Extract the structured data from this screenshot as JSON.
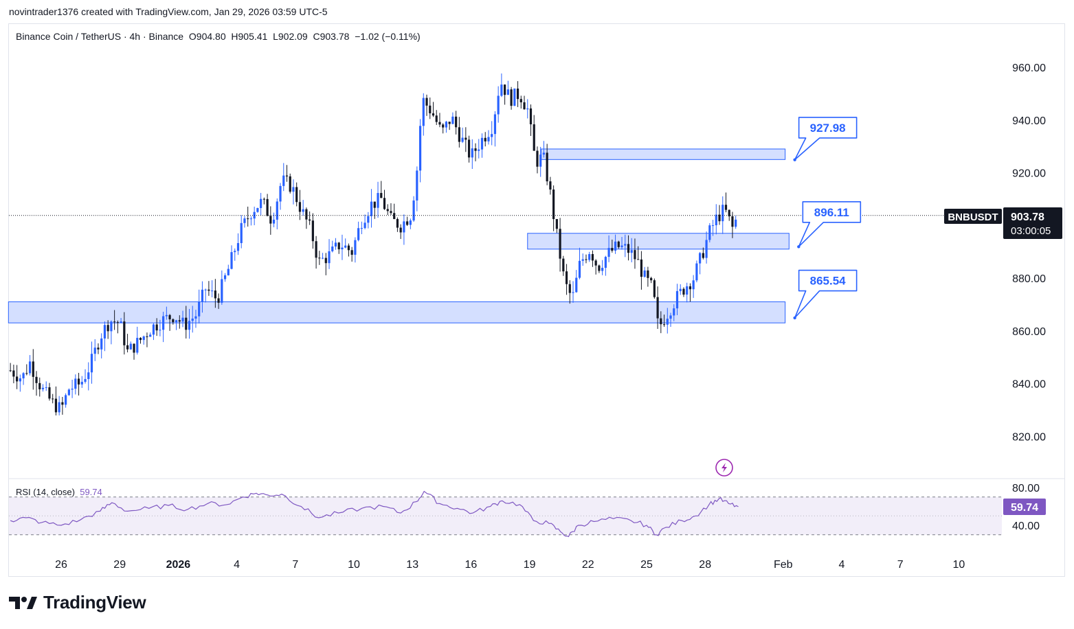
{
  "header": {
    "credit": "novintrader1376 created with TradingView.com, Jan 29, 2026 03:59 UTC-5"
  },
  "legend": {
    "symbol": "Binance Coin / TetherUS · 4h · Binance",
    "open": "O904.80",
    "high": "H905.41",
    "low": "L902.09",
    "close": "C903.78",
    "change": "−1.02 (−0.11%)"
  },
  "price_badge": {
    "ticker": "BNBUSDT",
    "price": "903.78",
    "countdown": "03:00:05"
  },
  "rsi": {
    "label": "RSI (14, close)",
    "value": "59.74",
    "upper": 70,
    "lower": 30,
    "color": "#7e57c2"
  },
  "brand": {
    "name": "TradingView"
  },
  "colors": {
    "up": "#2962ff",
    "down": "#131722",
    "zone_fill": "#cfdcff",
    "zone_stroke": "#2962ff"
  },
  "chart_data": {
    "type": "candlestick",
    "interval": "4h",
    "y_ticks": [
      960,
      940,
      920,
      900,
      880,
      860,
      840,
      820
    ],
    "y_tick_labels": [
      "960.00",
      "940.00",
      "920.00",
      "880.00",
      "860.00",
      "840.00",
      "820.00"
    ],
    "y_range": [
      807,
      970
    ],
    "rsi_ticks": [
      "80.00",
      "40.00"
    ],
    "x_ticks": [
      {
        "label": "26",
        "day": 0
      },
      {
        "label": "29",
        "day": 3
      },
      {
        "label": "2026",
        "day": 6
      },
      {
        "label": "4",
        "day": 9
      },
      {
        "label": "7",
        "day": 12
      },
      {
        "label": "10",
        "day": 15
      },
      {
        "label": "13",
        "day": 18
      },
      {
        "label": "16",
        "day": 21
      },
      {
        "label": "19",
        "day": 24
      },
      {
        "label": "22",
        "day": 27
      },
      {
        "label": "25",
        "day": 30
      },
      {
        "label": "28",
        "day": 33
      },
      {
        "label": "Feb",
        "day": 37
      },
      {
        "label": "4",
        "day": 40
      },
      {
        "label": "7",
        "day": 43
      },
      {
        "label": "10",
        "day": 46
      }
    ],
    "zones": [
      {
        "label": "927.98",
        "top": 929,
        "bottom": 925,
        "start_day": 24.6,
        "end_day": 37.1
      },
      {
        "label": "896.11",
        "top": 897,
        "bottom": 891,
        "start_day": 23.9,
        "end_day": 37.3
      },
      {
        "label": "865.54",
        "top": 871,
        "bottom": 863,
        "start_day": -2.7,
        "end_day": 37.1
      }
    ],
    "price_path": [
      {
        "day": -2.6,
        "price": 845
      },
      {
        "day": -2.0,
        "price": 842
      },
      {
        "day": -1.6,
        "price": 848
      },
      {
        "day": -1.0,
        "price": 838
      },
      {
        "day": -0.5,
        "price": 833
      },
      {
        "day": 0.0,
        "price": 830
      },
      {
        "day": 0.4,
        "price": 838
      },
      {
        "day": 1.0,
        "price": 840
      },
      {
        "day": 1.5,
        "price": 847
      },
      {
        "day": 2.0,
        "price": 858
      },
      {
        "day": 2.5,
        "price": 864
      },
      {
        "day": 3.0,
        "price": 863
      },
      {
        "day": 3.4,
        "price": 852
      },
      {
        "day": 4.0,
        "price": 856
      },
      {
        "day": 4.6,
        "price": 861
      },
      {
        "day": 5.2,
        "price": 864
      },
      {
        "day": 5.8,
        "price": 866
      },
      {
        "day": 6.3,
        "price": 862
      },
      {
        "day": 6.9,
        "price": 866
      },
      {
        "day": 7.4,
        "price": 876
      },
      {
        "day": 8.0,
        "price": 872
      },
      {
        "day": 8.6,
        "price": 884
      },
      {
        "day": 9.2,
        "price": 898
      },
      {
        "day": 9.8,
        "price": 906
      },
      {
        "day": 10.3,
        "price": 909
      },
      {
        "day": 10.8,
        "price": 902
      },
      {
        "day": 11.3,
        "price": 917
      },
      {
        "day": 11.8,
        "price": 915
      },
      {
        "day": 12.3,
        "price": 906
      },
      {
        "day": 12.8,
        "price": 898
      },
      {
        "day": 13.2,
        "price": 886
      },
      {
        "day": 13.8,
        "price": 889
      },
      {
        "day": 14.3,
        "price": 893
      },
      {
        "day": 14.9,
        "price": 890
      },
      {
        "day": 15.4,
        "price": 902
      },
      {
        "day": 15.9,
        "price": 908
      },
      {
        "day": 16.4,
        "price": 910
      },
      {
        "day": 16.9,
        "price": 902
      },
      {
        "day": 17.4,
        "price": 900
      },
      {
        "day": 17.9,
        "price": 904
      },
      {
        "day": 18.2,
        "price": 918
      },
      {
        "day": 18.5,
        "price": 948
      },
      {
        "day": 19.0,
        "price": 943
      },
      {
        "day": 19.5,
        "price": 935
      },
      {
        "day": 20.0,
        "price": 941
      },
      {
        "day": 20.5,
        "price": 933
      },
      {
        "day": 21.0,
        "price": 926
      },
      {
        "day": 21.5,
        "price": 932
      },
      {
        "day": 22.1,
        "price": 938
      },
      {
        "day": 22.5,
        "price": 955
      },
      {
        "day": 23.0,
        "price": 948
      },
      {
        "day": 23.5,
        "price": 950
      },
      {
        "day": 23.9,
        "price": 944
      },
      {
        "day": 24.3,
        "price": 924
      },
      {
        "day": 24.7,
        "price": 926
      },
      {
        "day": 25.0,
        "price": 915
      },
      {
        "day": 25.4,
        "price": 896
      },
      {
        "day": 25.8,
        "price": 878
      },
      {
        "day": 26.2,
        "price": 872
      },
      {
        "day": 26.6,
        "price": 886
      },
      {
        "day": 27.1,
        "price": 891
      },
      {
        "day": 27.5,
        "price": 884
      },
      {
        "day": 28.0,
        "price": 889
      },
      {
        "day": 28.5,
        "price": 892
      },
      {
        "day": 29.0,
        "price": 891
      },
      {
        "day": 29.5,
        "price": 887
      },
      {
        "day": 29.9,
        "price": 880
      },
      {
        "day": 30.3,
        "price": 876
      },
      {
        "day": 30.6,
        "price": 861
      },
      {
        "day": 31.0,
        "price": 866
      },
      {
        "day": 31.5,
        "price": 872
      },
      {
        "day": 32.0,
        "price": 877
      },
      {
        "day": 32.4,
        "price": 880
      },
      {
        "day": 32.8,
        "price": 888
      },
      {
        "day": 33.2,
        "price": 897
      },
      {
        "day": 33.6,
        "price": 903
      },
      {
        "day": 34.0,
        "price": 906
      },
      {
        "day": 34.4,
        "price": 899
      },
      {
        "day": 34.7,
        "price": 904
      }
    ],
    "rsi_path": [
      {
        "day": -2.6,
        "rsi": 45
      },
      {
        "day": -1.8,
        "rsi": 48
      },
      {
        "day": -1.0,
        "rsi": 43
      },
      {
        "day": 0.0,
        "rsi": 40
      },
      {
        "day": 1.0,
        "rsi": 46
      },
      {
        "day": 2.0,
        "rsi": 55
      },
      {
        "day": 2.6,
        "rsi": 64
      },
      {
        "day": 3.4,
        "rsi": 55
      },
      {
        "day": 4.5,
        "rsi": 58
      },
      {
        "day": 5.5,
        "rsi": 61
      },
      {
        "day": 6.5,
        "rsi": 57
      },
      {
        "day": 7.5,
        "rsi": 63
      },
      {
        "day": 8.5,
        "rsi": 62
      },
      {
        "day": 9.3,
        "rsi": 70
      },
      {
        "day": 10.0,
        "rsi": 74
      },
      {
        "day": 10.6,
        "rsi": 72
      },
      {
        "day": 11.3,
        "rsi": 73
      },
      {
        "day": 12.3,
        "rsi": 60
      },
      {
        "day": 13.2,
        "rsi": 48
      },
      {
        "day": 14.2,
        "rsi": 53
      },
      {
        "day": 15.4,
        "rsi": 58
      },
      {
        "day": 16.5,
        "rsi": 60
      },
      {
        "day": 17.4,
        "rsi": 53
      },
      {
        "day": 18.2,
        "rsi": 65
      },
      {
        "day": 18.6,
        "rsi": 76
      },
      {
        "day": 19.4,
        "rsi": 63
      },
      {
        "day": 20.3,
        "rsi": 58
      },
      {
        "day": 21.1,
        "rsi": 53
      },
      {
        "day": 22.0,
        "rsi": 60
      },
      {
        "day": 22.6,
        "rsi": 66
      },
      {
        "day": 23.5,
        "rsi": 62
      },
      {
        "day": 24.2,
        "rsi": 45
      },
      {
        "day": 25.0,
        "rsi": 42
      },
      {
        "day": 25.6,
        "rsi": 33
      },
      {
        "day": 26.0,
        "rsi": 28
      },
      {
        "day": 26.5,
        "rsi": 40
      },
      {
        "day": 27.3,
        "rsi": 44
      },
      {
        "day": 28.3,
        "rsi": 47
      },
      {
        "day": 29.2,
        "rsi": 45
      },
      {
        "day": 30.0,
        "rsi": 40
      },
      {
        "day": 30.5,
        "rsi": 30
      },
      {
        "day": 31.0,
        "rsi": 38
      },
      {
        "day": 31.8,
        "rsi": 45
      },
      {
        "day": 32.5,
        "rsi": 50
      },
      {
        "day": 33.2,
        "rsi": 62
      },
      {
        "day": 33.7,
        "rsi": 68
      },
      {
        "day": 34.2,
        "rsi": 63
      },
      {
        "day": 34.7,
        "rsi": 59.74
      }
    ]
  }
}
